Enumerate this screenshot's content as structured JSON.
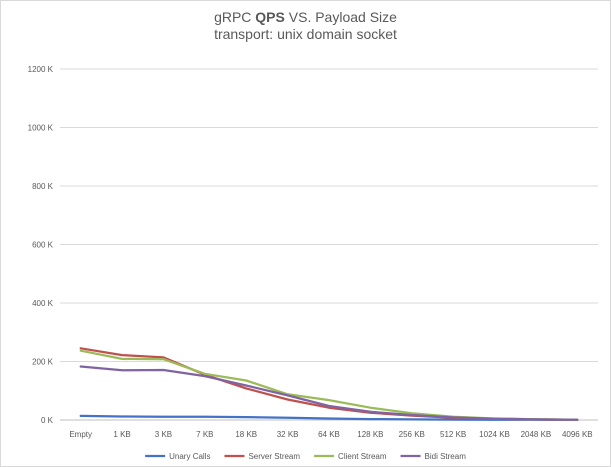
{
  "chart_data": {
    "type": "line",
    "title": {
      "prefix": "gRPC ",
      "bold": "QPS",
      "suffix": " VS. Payload Size"
    },
    "subtitle": "transport: unix domain socket",
    "categories": [
      "Empty",
      "1 KB",
      "3 KB",
      "7 KB",
      "18 KB",
      "32 KB",
      "64 KB",
      "128 KB",
      "256 KB",
      "512 KB",
      "1024 KB",
      "2048 KB",
      "4096 KB"
    ],
    "ylim": [
      0,
      1200000
    ],
    "yticks": [
      0,
      200000,
      400000,
      600000,
      800000,
      1000000,
      1200000
    ],
    "ytick_labels": [
      "0 K",
      "200 K",
      "400 K",
      "600 K",
      "800 K",
      "1000 K",
      "1200 K"
    ],
    "grid": true,
    "legend_position": "bottom",
    "series": [
      {
        "name": "Unary Calls",
        "color": "#4472c4",
        "values": [
          14000,
          12000,
          11000,
          11000,
          10000,
          8000,
          5000,
          3000,
          2000,
          1500,
          1000,
          700,
          400
        ]
      },
      {
        "name": "Server Stream",
        "color": "#c0504d",
        "values": [
          245000,
          222000,
          214000,
          155000,
          108000,
          70000,
          42000,
          25000,
          15000,
          8000,
          4000,
          2000,
          700
        ]
      },
      {
        "name": "Client Stream",
        "color": "#9bbb59",
        "values": [
          237000,
          209000,
          208000,
          158000,
          135000,
          88000,
          68000,
          42000,
          23000,
          11000,
          5000,
          2500,
          900
        ]
      },
      {
        "name": "Bidi Stream",
        "color": "#8064a2",
        "values": [
          183000,
          170000,
          171000,
          150000,
          118000,
          84000,
          48000,
          28000,
          17000,
          9000,
          4500,
          2200,
          800
        ]
      }
    ]
  }
}
